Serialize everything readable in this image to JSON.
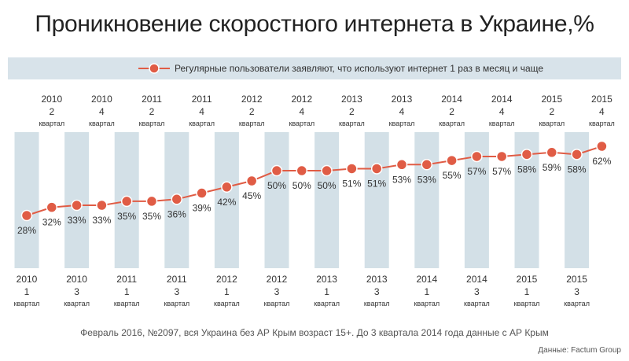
{
  "title": "Проникновение скоростного интернета в Украине,%",
  "legend": {
    "label": "Регулярные пользователи заявляют, что используют интернет 1 раз в месяц и чаще"
  },
  "note": "Февраль 2016, №2097, вся Украина без АР Крым возраст 15+. До 3 квартала 2014 года данные с АР Крым",
  "source": "Данные: Factum Group",
  "colors": {
    "line": "#e05c45",
    "band": "#d3e0e7",
    "legend_bg": "#d8e3ea",
    "text": "#333333"
  },
  "chart_data": {
    "type": "line",
    "title": "Проникновение скоростного интернета в Украине,%",
    "quarter_word": "квартал",
    "categories": [
      {
        "year": "2010",
        "q": "1"
      },
      {
        "year": "2010",
        "q": "2"
      },
      {
        "year": "2010",
        "q": "3"
      },
      {
        "year": "2010",
        "q": "4"
      },
      {
        "year": "2011",
        "q": "1"
      },
      {
        "year": "2011",
        "q": "2"
      },
      {
        "year": "2011",
        "q": "3"
      },
      {
        "year": "2011",
        "q": "4"
      },
      {
        "year": "2012",
        "q": "1"
      },
      {
        "year": "2012",
        "q": "2"
      },
      {
        "year": "2012",
        "q": "3"
      },
      {
        "year": "2012",
        "q": "4"
      },
      {
        "year": "2013",
        "q": "1"
      },
      {
        "year": "2013",
        "q": "2"
      },
      {
        "year": "2013",
        "q": "3"
      },
      {
        "year": "2013",
        "q": "4"
      },
      {
        "year": "2014",
        "q": "1"
      },
      {
        "year": "2014",
        "q": "2"
      },
      {
        "year": "2014",
        "q": "3"
      },
      {
        "year": "2014",
        "q": "4"
      },
      {
        "year": "2015",
        "q": "1"
      },
      {
        "year": "2015",
        "q": "2"
      },
      {
        "year": "2015",
        "q": "3"
      },
      {
        "year": "2015",
        "q": "4"
      }
    ],
    "series": [
      {
        "name": "Регулярные пользователи заявляют, что используют интернет 1 раз в месяц и чаще",
        "values": [
          28,
          32,
          33,
          33,
          35,
          35,
          36,
          39,
          42,
          45,
          50,
          50,
          50,
          51,
          51,
          53,
          53,
          55,
          57,
          57,
          58,
          59,
          58,
          62
        ],
        "labels": [
          "28%",
          "32%",
          "33%",
          "33%",
          "35%",
          "35%",
          "36%",
          "39%",
          "42%",
          "45%",
          "50%",
          "50%",
          "50%",
          "51%",
          "51%",
          "53%",
          "53%",
          "55%",
          "57%",
          "57%",
          "58%",
          "59%",
          "58%",
          "62%"
        ]
      }
    ],
    "ylim": [
      28,
      62
    ],
    "grid": false,
    "legend_position": "top"
  }
}
